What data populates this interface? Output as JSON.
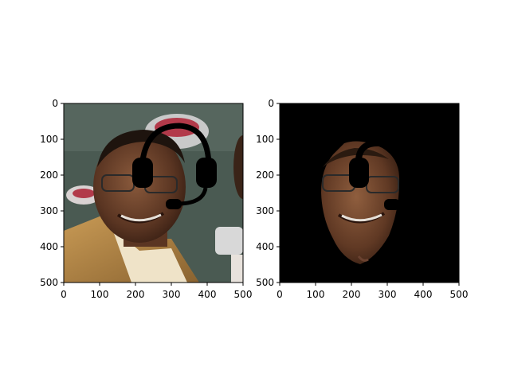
{
  "chart_data": [
    {
      "type": "image",
      "content": "photo-with-headset-overlay",
      "xlim": [
        0,
        500
      ],
      "ylim": [
        500,
        0
      ],
      "xticks": [
        0,
        100,
        200,
        300,
        400,
        500
      ],
      "yticks": [
        0,
        100,
        200,
        300,
        400,
        500
      ],
      "xtick_labels": [
        "0",
        "100",
        "200",
        "300",
        "400",
        "500"
      ],
      "ytick_labels": [
        "0",
        "100",
        "200",
        "300",
        "400",
        "500"
      ],
      "background_color": "#4a5a52"
    },
    {
      "type": "image",
      "content": "segmented-face-with-headset-mask",
      "xlim": [
        0,
        500
      ],
      "ylim": [
        500,
        0
      ],
      "xticks": [
        0,
        100,
        200,
        300,
        400,
        500
      ],
      "yticks": [
        0,
        100,
        200,
        300,
        400,
        500
      ],
      "xtick_labels": [
        "0",
        "100",
        "200",
        "300",
        "400",
        "500"
      ],
      "ytick_labels": [
        "0",
        "100",
        "200",
        "300",
        "400",
        "500"
      ],
      "background_color": "#000000"
    }
  ]
}
